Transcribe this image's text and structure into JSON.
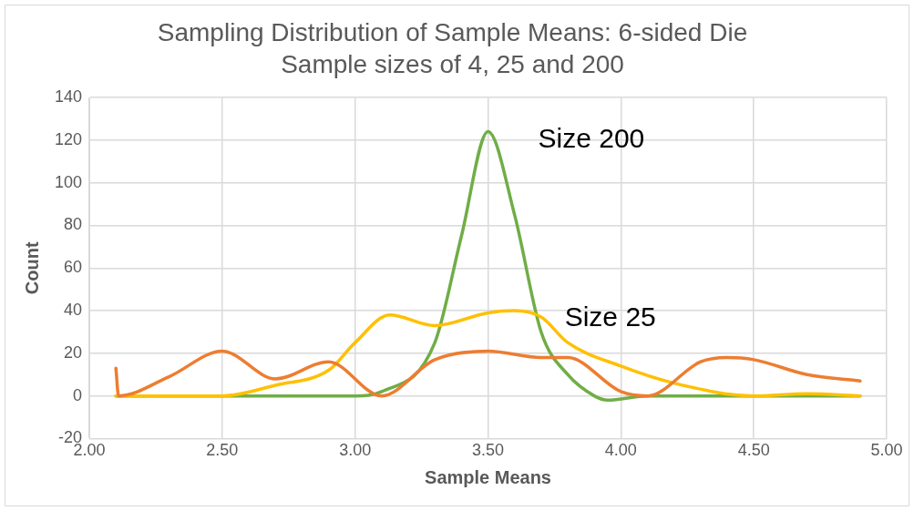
{
  "chart_data": {
    "type": "line",
    "title": "Sampling Distribution of Sample Means: 6-sided Die",
    "subtitle": "Sample sizes of 4, 25 and 200",
    "xlabel": "Sample Means",
    "ylabel": "Count",
    "xlim": [
      2,
      5
    ],
    "xticks": [
      {
        "value": 2,
        "label": "2.00"
      },
      {
        "value": 2.5,
        "label": "2.50"
      },
      {
        "value": 3,
        "label": "3.00"
      },
      {
        "value": 3.5,
        "label": "3.50"
      },
      {
        "value": 4,
        "label": "4.00"
      },
      {
        "value": 4.5,
        "label": "4.50"
      },
      {
        "value": 5,
        "label": "5.00"
      }
    ],
    "ylim": [
      -20,
      140
    ],
    "yticks": [
      -20,
      0,
      20,
      40,
      60,
      80,
      100,
      120,
      140
    ],
    "grid": true,
    "legend": false,
    "marker": "none",
    "line_style": "solid",
    "series": [
      {
        "color": "#ed7d31",
        "x": [
          2.1,
          2.11,
          2.3,
          2.5,
          2.7,
          2.9,
          3.1,
          3.3,
          3.5,
          3.7,
          3.8,
          4.0,
          4.1,
          4.3,
          4.4,
          4.5,
          4.7,
          4.9
        ],
        "values": [
          13,
          0,
          9,
          21,
          8,
          16,
          0,
          17,
          21,
          18,
          18,
          2,
          0,
          16,
          18,
          17,
          10,
          7
        ]
      },
      {
        "name": "Size 25",
        "color": "#ffc000",
        "x": [
          2.1,
          2.3,
          2.5,
          2.7,
          2.9,
          3.0,
          3.13,
          3.3,
          3.5,
          3.6,
          3.7,
          3.8,
          4.0,
          4.2,
          4.5,
          4.7,
          4.9
        ],
        "values": [
          0,
          0,
          0,
          5,
          12,
          25,
          38,
          33,
          39,
          40,
          37,
          25,
          14,
          6,
          0,
          1,
          0
        ]
      },
      {
        "name": "Size 200",
        "color": "#70ad47",
        "x": [
          2.1,
          2.5,
          2.9,
          3.0,
          3.1,
          3.3,
          3.4,
          3.5,
          3.6,
          3.7,
          3.8,
          3.9,
          3.95,
          4.1,
          4.5,
          4.9
        ],
        "values": [
          0,
          0,
          0,
          0,
          2,
          25,
          75,
          124,
          85,
          30,
          10,
          0,
          -2,
          0,
          0,
          0
        ]
      }
    ]
  }
}
